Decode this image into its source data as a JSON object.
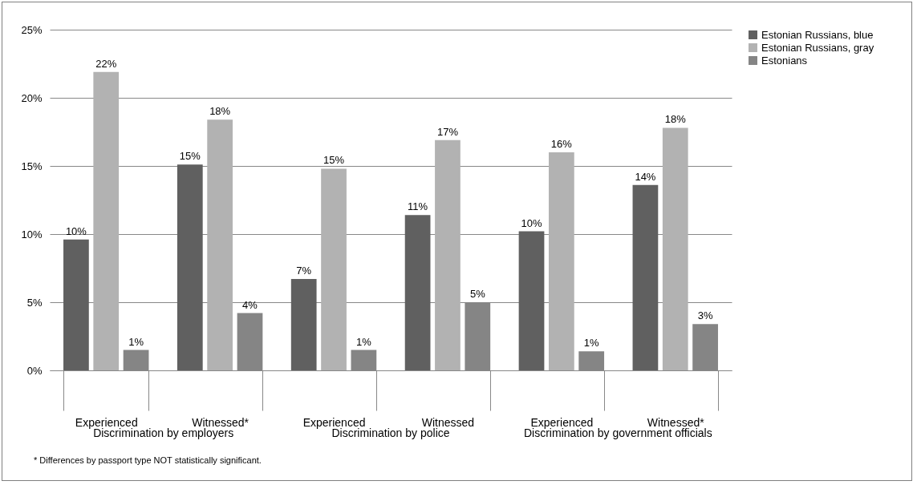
{
  "chart_data": {
    "type": "bar",
    "categories": [
      "Experienced",
      "Witnessed*",
      "Experienced",
      "Witnessed",
      "Experienced",
      "Witnessed*"
    ],
    "series": [
      {
        "name": "Estonian Russians, blue",
        "color": "#606060",
        "values": [
          9.6,
          15.1,
          6.7,
          11.4,
          10.2,
          13.6
        ],
        "value_labels": [
          "10%",
          "15%",
          "7%",
          "11%",
          "10%",
          "14%"
        ]
      },
      {
        "name": "Estonian Russians, gray",
        "color": "#b2b2b2",
        "values": [
          21.9,
          18.4,
          14.8,
          16.9,
          16.0,
          17.8
        ],
        "value_labels": [
          "22%",
          "18%",
          "15%",
          "17%",
          "16%",
          "18%"
        ]
      },
      {
        "name": "Estonians",
        "color": "#858585",
        "values": [
          1.5,
          4.2,
          1.5,
          5.0,
          1.4,
          3.4
        ],
        "value_labels": [
          "1%",
          "4%",
          "1%",
          "5%",
          "1%",
          "3%"
        ]
      }
    ],
    "ylim": [
      0,
      25
    ],
    "yticks": [
      {
        "value": 0,
        "label": "0%"
      },
      {
        "value": 5,
        "label": "5%"
      },
      {
        "value": 10,
        "label": "10%"
      },
      {
        "value": 15,
        "label": "15%"
      },
      {
        "value": 20,
        "label": "20%"
      },
      {
        "value": 25,
        "label": "25%"
      }
    ],
    "grid": "y",
    "legend": "right",
    "annotations": [
      "Discrimination by employers",
      "Discrimination by police",
      "Discrimination by government officials",
      "* Differences by passport type NOT statistically significant."
    ]
  }
}
